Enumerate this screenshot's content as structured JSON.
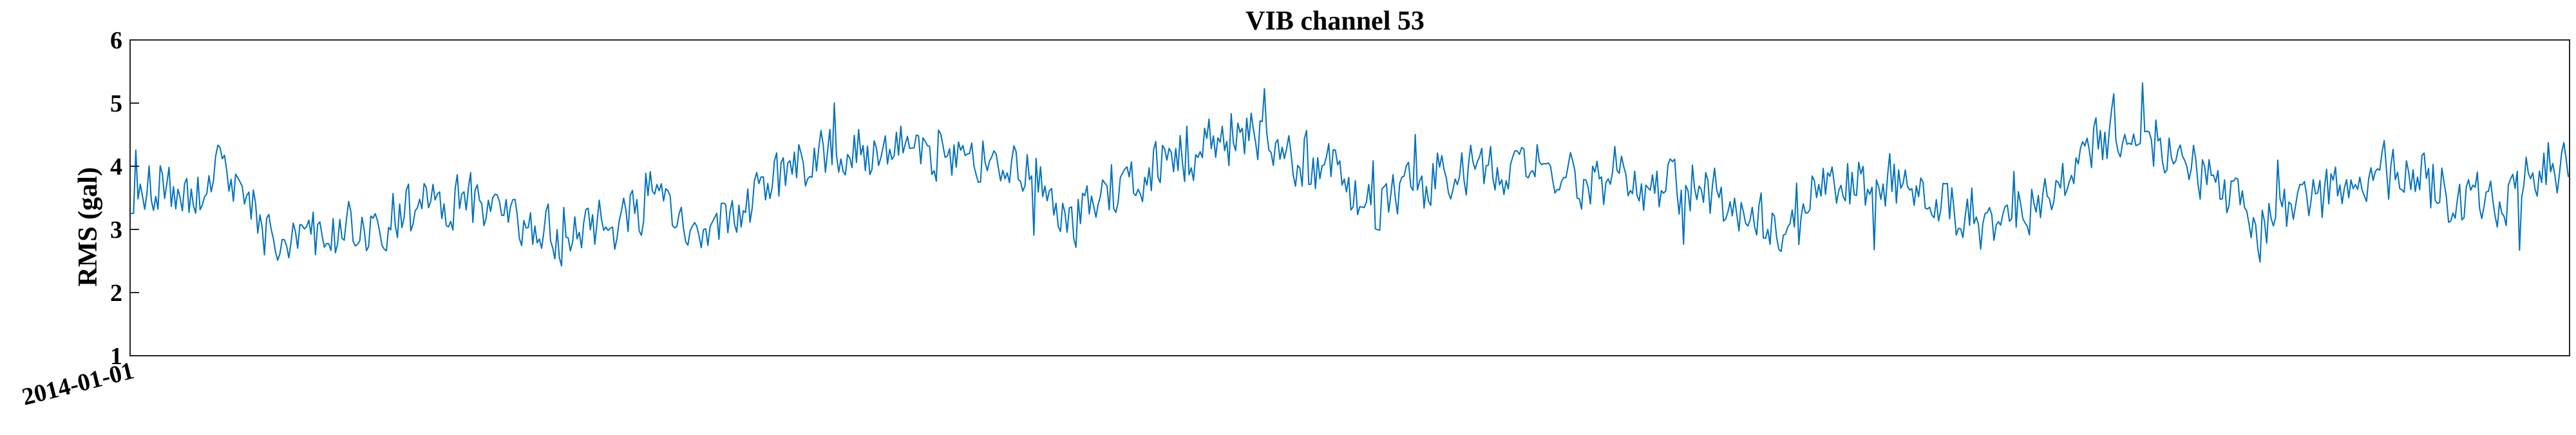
{
  "chart_data": {
    "type": "line",
    "title": "VIB channel 53",
    "xlabel": "",
    "ylabel": "RMS (gal)",
    "ylim": [
      1,
      6
    ],
    "yticks": [
      1,
      2,
      3,
      4,
      5,
      6
    ],
    "xticks": [
      {
        "value": "2014-01-01",
        "label": "2014-01-01"
      }
    ],
    "grid": false,
    "legend": "none",
    "series": [
      {
        "color": "#0072BD",
        "x_start": "2014-01-01",
        "point_count": 1100,
        "anchors": [
          [
            0,
            3.5
          ],
          [
            12,
            3.8
          ],
          [
            25,
            3.4
          ],
          [
            40,
            4.0
          ],
          [
            55,
            3.2
          ],
          [
            70,
            2.8
          ],
          [
            85,
            2.9
          ],
          [
            100,
            3.0
          ],
          [
            120,
            3.2
          ],
          [
            140,
            3.5
          ],
          [
            160,
            3.3
          ],
          [
            180,
            3.0
          ],
          [
            200,
            2.9
          ],
          [
            220,
            3.2
          ],
          [
            240,
            3.5
          ],
          [
            255,
            2.8
          ],
          [
            270,
            3.2
          ],
          [
            290,
            3.8
          ],
          [
            310,
            4.2
          ],
          [
            330,
            4.3
          ],
          [
            350,
            4.2
          ],
          [
            370,
            4.3
          ],
          [
            390,
            4.0
          ],
          [
            410,
            3.8
          ],
          [
            420,
            3.2
          ],
          [
            440,
            3.5
          ],
          [
            460,
            4.0
          ],
          [
            480,
            4.3
          ],
          [
            500,
            4.5
          ],
          [
            520,
            4.2
          ],
          [
            540,
            4.0
          ],
          [
            560,
            3.4
          ],
          [
            580,
            3.8
          ],
          [
            600,
            4.0
          ],
          [
            620,
            4.0
          ],
          [
            640,
            3.9
          ],
          [
            660,
            3.7
          ],
          [
            680,
            3.8
          ],
          [
            700,
            3.7
          ],
          [
            720,
            3.5
          ],
          [
            740,
            3.0
          ],
          [
            760,
            3.7
          ],
          [
            780,
            3.8
          ],
          [
            800,
            3.7
          ],
          [
            820,
            3.5
          ],
          [
            840,
            2.9
          ],
          [
            860,
            3.5
          ],
          [
            880,
            4.2
          ],
          [
            900,
            4.5
          ],
          [
            920,
            4.3
          ],
          [
            940,
            3.8
          ],
          [
            960,
            3.0
          ],
          [
            980,
            3.5
          ],
          [
            1000,
            3.8
          ],
          [
            1020,
            4.0
          ],
          [
            1040,
            3.7
          ],
          [
            1060,
            3.3
          ],
          [
            1080,
            3.8
          ],
          [
            1099,
            4.1
          ]
        ]
      }
    ]
  }
}
